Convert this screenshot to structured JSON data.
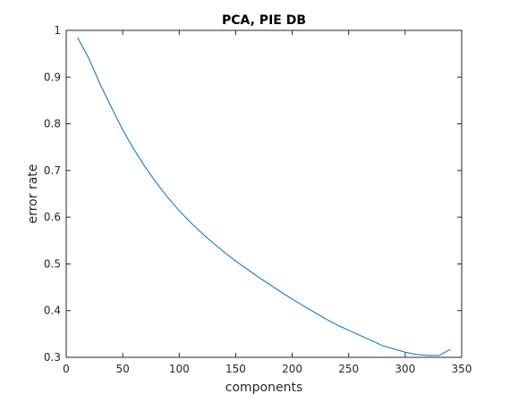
{
  "chart_data": {
    "type": "line",
    "title": "PCA, PIE DB",
    "xlabel": "components",
    "ylabel": "error rate",
    "xlim": [
      0,
      350
    ],
    "ylim": [
      0.3,
      1
    ],
    "xticks": [
      0,
      50,
      100,
      150,
      200,
      250,
      300,
      350
    ],
    "yticks": [
      0.3,
      0.4,
      0.5,
      0.6,
      0.7,
      0.8,
      0.9,
      1
    ],
    "ytick_labels": [
      "0.3",
      "0.4",
      "0.5",
      "0.6",
      "0.7",
      "0.8",
      "0.9",
      "1"
    ],
    "grid": false,
    "series": [
      {
        "color": "#0072BD",
        "x": [
          10,
          20,
          30,
          40,
          50,
          60,
          70,
          80,
          90,
          100,
          110,
          120,
          130,
          140,
          150,
          160,
          170,
          180,
          190,
          200,
          210,
          220,
          230,
          240,
          250,
          260,
          270,
          280,
          290,
          300,
          310,
          320,
          330,
          340
        ],
        "y": [
          0.985,
          0.94,
          0.885,
          0.835,
          0.787,
          0.745,
          0.707,
          0.673,
          0.642,
          0.614,
          0.589,
          0.566,
          0.545,
          0.525,
          0.506,
          0.489,
          0.472,
          0.456,
          0.44,
          0.425,
          0.41,
          0.396,
          0.382,
          0.369,
          0.358,
          0.347,
          0.336,
          0.325,
          0.318,
          0.311,
          0.306,
          0.304,
          0.304,
          0.317
        ]
      }
    ]
  }
}
